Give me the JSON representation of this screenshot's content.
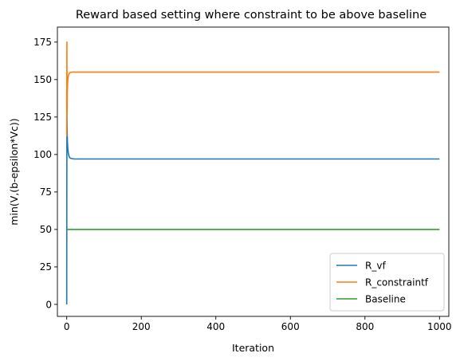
{
  "chart_data": {
    "type": "line",
    "title": "Reward based setting where constraint to be above baseline",
    "xlabel": "Iteration",
    "ylabel": "min(V,(b-epsilon*Vc))",
    "xlim": [
      -25,
      1025
    ],
    "ylim": [
      -8,
      185
    ],
    "xticks": [
      0,
      200,
      400,
      600,
      800,
      1000
    ],
    "yticks": [
      0,
      25,
      50,
      75,
      100,
      125,
      150,
      175
    ],
    "legend_position": "lower-right",
    "series": [
      {
        "name": "R_vf",
        "color": "#1f77b4",
        "x": [
          0,
          0.5,
          1,
          1.5,
          2,
          3,
          4,
          5,
          6,
          8,
          10,
          15,
          20,
          30,
          1000
        ],
        "y": [
          0,
          130,
          118,
          112,
          108,
          104,
          101.5,
          100,
          99,
          98,
          97.5,
          97.2,
          97,
          97,
          97
        ]
      },
      {
        "name": "R_constraintf",
        "color": "#ff7f0e",
        "x": [
          0,
          0.5,
          1,
          1.5,
          2,
          3,
          4,
          5,
          6,
          8,
          10,
          15,
          20,
          30,
          1000
        ],
        "y": [
          112,
          175,
          128,
          140,
          146,
          150,
          152,
          153,
          153.8,
          154.4,
          154.8,
          155,
          155,
          155,
          155
        ]
      },
      {
        "name": "Baseline",
        "color": "#2ca02c",
        "x": [
          0,
          1000
        ],
        "y": [
          50,
          50
        ]
      }
    ]
  }
}
